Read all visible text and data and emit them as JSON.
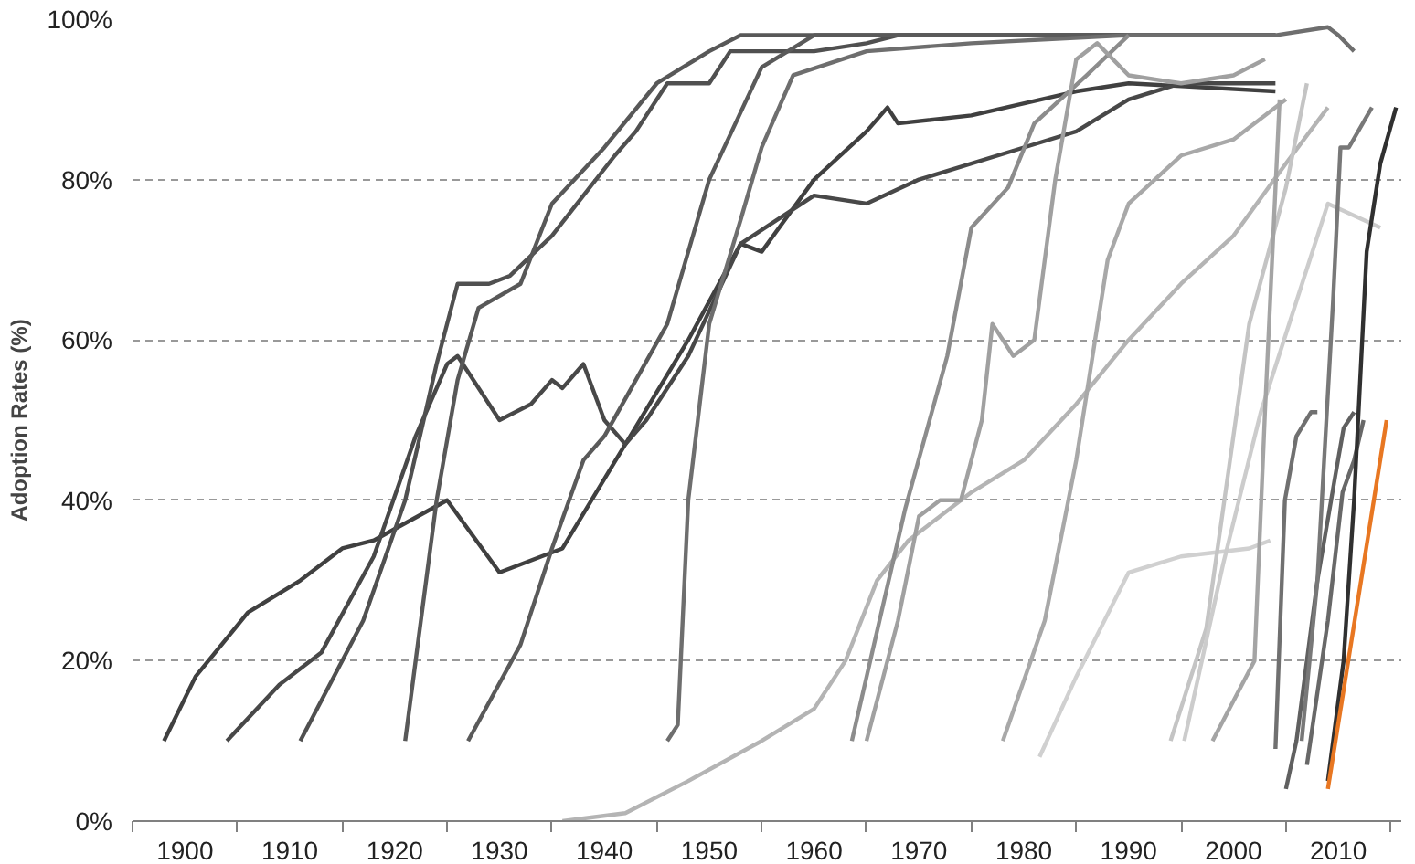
{
  "chart_data": {
    "type": "line",
    "ylabel": "Adoption Rates (%)",
    "grid": "y",
    "line_style": "solid",
    "marker": "none",
    "xlim": [
      1895,
      2016
    ],
    "ylim": [
      0,
      100
    ],
    "xticks": [
      {
        "value": 1895,
        "label": null
      },
      {
        "value": 1900,
        "label": "1900"
      },
      {
        "value": 1905,
        "label": null
      },
      {
        "value": 1910,
        "label": "1910"
      },
      {
        "value": 1915,
        "label": null
      },
      {
        "value": 1920,
        "label": "1920"
      },
      {
        "value": 1925,
        "label": null
      },
      {
        "value": 1930,
        "label": "1930"
      },
      {
        "value": 1935,
        "label": null
      },
      {
        "value": 1940,
        "label": "1940"
      },
      {
        "value": 1945,
        "label": null
      },
      {
        "value": 1950,
        "label": "1950"
      },
      {
        "value": 1955,
        "label": null
      },
      {
        "value": 1960,
        "label": "1960"
      },
      {
        "value": 1965,
        "label": null
      },
      {
        "value": 1970,
        "label": "1970"
      },
      {
        "value": 1975,
        "label": null
      },
      {
        "value": 1980,
        "label": "1980"
      },
      {
        "value": 1985,
        "label": null
      },
      {
        "value": 1990,
        "label": "1990"
      },
      {
        "value": 1995,
        "label": null
      },
      {
        "value": 2000,
        "label": "2000"
      },
      {
        "value": 2005,
        "label": null
      },
      {
        "value": 2010,
        "label": "2010"
      },
      {
        "value": 2015,
        "label": null
      }
    ],
    "yticks": [
      {
        "value": 0,
        "label": "0%"
      },
      {
        "value": 20,
        "label": "20%"
      },
      {
        "value": 40,
        "label": "40%"
      },
      {
        "value": 60,
        "label": "60%"
      },
      {
        "value": 80,
        "label": "80%"
      },
      {
        "value": 100,
        "label": "100%"
      }
    ],
    "series": [
      {
        "color": "#404040",
        "x": [
          1898,
          1901,
          1906,
          1911,
          1915,
          1918,
          1925,
          1930,
          1936,
          1942,
          1948,
          1953,
          1955,
          1960,
          1965,
          1967,
          1968,
          1975,
          1985,
          1990,
          2004
        ],
        "values": [
          10,
          18,
          26,
          30,
          34,
          35,
          40,
          31,
          34,
          47,
          60,
          72,
          71,
          80,
          86,
          89,
          87,
          88,
          91,
          92,
          91
        ]
      },
      {
        "color": "#484848",
        "x": [
          1904,
          1909,
          1913,
          1918,
          1922,
          1925,
          1926,
          1930,
          1933,
          1935,
          1936,
          1938,
          1940,
          1942,
          1944,
          1948,
          1953,
          1960,
          1965,
          1970,
          1980,
          1985,
          1990,
          1995,
          2004
        ],
        "values": [
          10,
          17,
          21,
          33,
          48,
          57,
          58,
          50,
          52,
          55,
          54,
          57,
          50,
          47,
          50,
          58,
          72,
          78,
          77,
          80,
          84,
          86,
          90,
          92,
          92
        ]
      },
      {
        "color": "#505050",
        "x": [
          1911,
          1913,
          1917,
          1921,
          1924,
          1926,
          1929,
          1931,
          1935,
          1938,
          1941,
          1943,
          1946,
          1950,
          1952,
          1960,
          1965,
          1968,
          2004
        ],
        "values": [
          10,
          15,
          25,
          40,
          57,
          67,
          67,
          68,
          73,
          78,
          83,
          86,
          92,
          92,
          96,
          96,
          97,
          98,
          98
        ]
      },
      {
        "color": "#585858",
        "x": [
          1921,
          1922,
          1924,
          1926,
          1928,
          1932,
          1935,
          1940,
          1945,
          1950,
          1953,
          2004
        ],
        "values": [
          10,
          20,
          40,
          55,
          64,
          67,
          77,
          84,
          92,
          96,
          98,
          98
        ]
      },
      {
        "color": "#5a5a5a",
        "x": [
          1927,
          1932,
          1935,
          1938,
          1940,
          1946,
          1950,
          1955,
          1960,
          2004
        ],
        "values": [
          10,
          22,
          34,
          45,
          48,
          62,
          80,
          94,
          98,
          98
        ]
      },
      {
        "color": "#6e6e6e",
        "x": [
          1946,
          1947,
          1948,
          1950,
          1953,
          1955,
          1958,
          1965,
          1975,
          1990,
          2004,
          2009,
          2010,
          2011.5
        ],
        "values": [
          10,
          12,
          40,
          62,
          75,
          84,
          93,
          96,
          97,
          98,
          98,
          99,
          98,
          96
        ]
      },
      {
        "color": "#b4b4b4",
        "x": [
          1936,
          1942,
          1948,
          1955,
          1960,
          1963,
          1966,
          1969,
          1975,
          1980,
          1985,
          1990,
          1995,
          2000,
          2005,
          2009
        ],
        "values": [
          0,
          1,
          5,
          10,
          14,
          20,
          30,
          35,
          41,
          45,
          52,
          60,
          67,
          73,
          82,
          89
        ]
      },
      {
        "color": "#8c8c8c",
        "x": [
          1963.6,
          1968.7,
          1972.7,
          1975,
          1978.5,
          1981,
          1986,
          1990
        ],
        "values": [
          10,
          39,
          58,
          74,
          79,
          87,
          93,
          98
        ]
      },
      {
        "color": "#a0a0a0",
        "x": [
          1965,
          1968,
          1970,
          1972,
          1974,
          1976,
          1977,
          1979,
          1981,
          1983,
          1985,
          1987,
          1990,
          1995,
          2000,
          2003
        ],
        "values": [
          10,
          25,
          38,
          40,
          40,
          50,
          62,
          58,
          60,
          80,
          95,
          97,
          93,
          92,
          93,
          95
        ]
      },
      {
        "color": "#a8a8a8",
        "x": [
          1978,
          1982,
          1985,
          1988,
          1990,
          1995,
          2000,
          2005
        ],
        "values": [
          10,
          25,
          45,
          70,
          77,
          83,
          85,
          90
        ]
      },
      {
        "color": "#d0d0d0",
        "x": [
          1981.5,
          1985,
          1990,
          1995,
          2001.5,
          2003.5
        ],
        "values": [
          8,
          18,
          31,
          33,
          34,
          35
        ]
      },
      {
        "color": "#c4c4c4",
        "x": [
          1994,
          1997.4,
          2001.5,
          2005,
          2007
        ],
        "values": [
          10,
          24,
          62,
          79,
          92
        ]
      },
      {
        "color": "#cccccc",
        "x": [
          1995.3,
          1999,
          2002.6,
          2009,
          2014
        ],
        "values": [
          10,
          32,
          51,
          77,
          74
        ]
      },
      {
        "color": "#a4a4a4",
        "x": [
          1998,
          2002,
          2003,
          2004.4
        ],
        "values": [
          10,
          20,
          51,
          90
        ]
      },
      {
        "color": "#707070",
        "x": [
          2004,
          2004.9,
          2006,
          2007.4,
          2008
        ],
        "values": [
          9,
          40,
          48,
          51,
          51
        ]
      },
      {
        "color": "#606060",
        "x": [
          2005,
          2006,
          2008,
          2009.7,
          2010.5,
          2011.5
        ],
        "values": [
          4,
          10,
          30,
          43,
          49,
          51
        ]
      },
      {
        "color": "#686868",
        "x": [
          2007,
          2009,
          2010.4,
          2011.5,
          2012.4
        ],
        "values": [
          7,
          25,
          41,
          45,
          50
        ]
      },
      {
        "color": "#787878",
        "x": [
          2006.5,
          2008,
          2009.5,
          2010.2,
          2011,
          2013.2
        ],
        "values": [
          10,
          30,
          65,
          84,
          84,
          89
        ]
      },
      {
        "color": "#303030",
        "x": [
          2009,
          2010.5,
          2011.5,
          2012.7,
          2014,
          2015.5
        ],
        "values": [
          5,
          20,
          40,
          71,
          82,
          89
        ]
      },
      {
        "color": "#e87722",
        "x": [
          2009,
          2014.6
        ],
        "values": [
          4,
          50
        ]
      }
    ]
  }
}
